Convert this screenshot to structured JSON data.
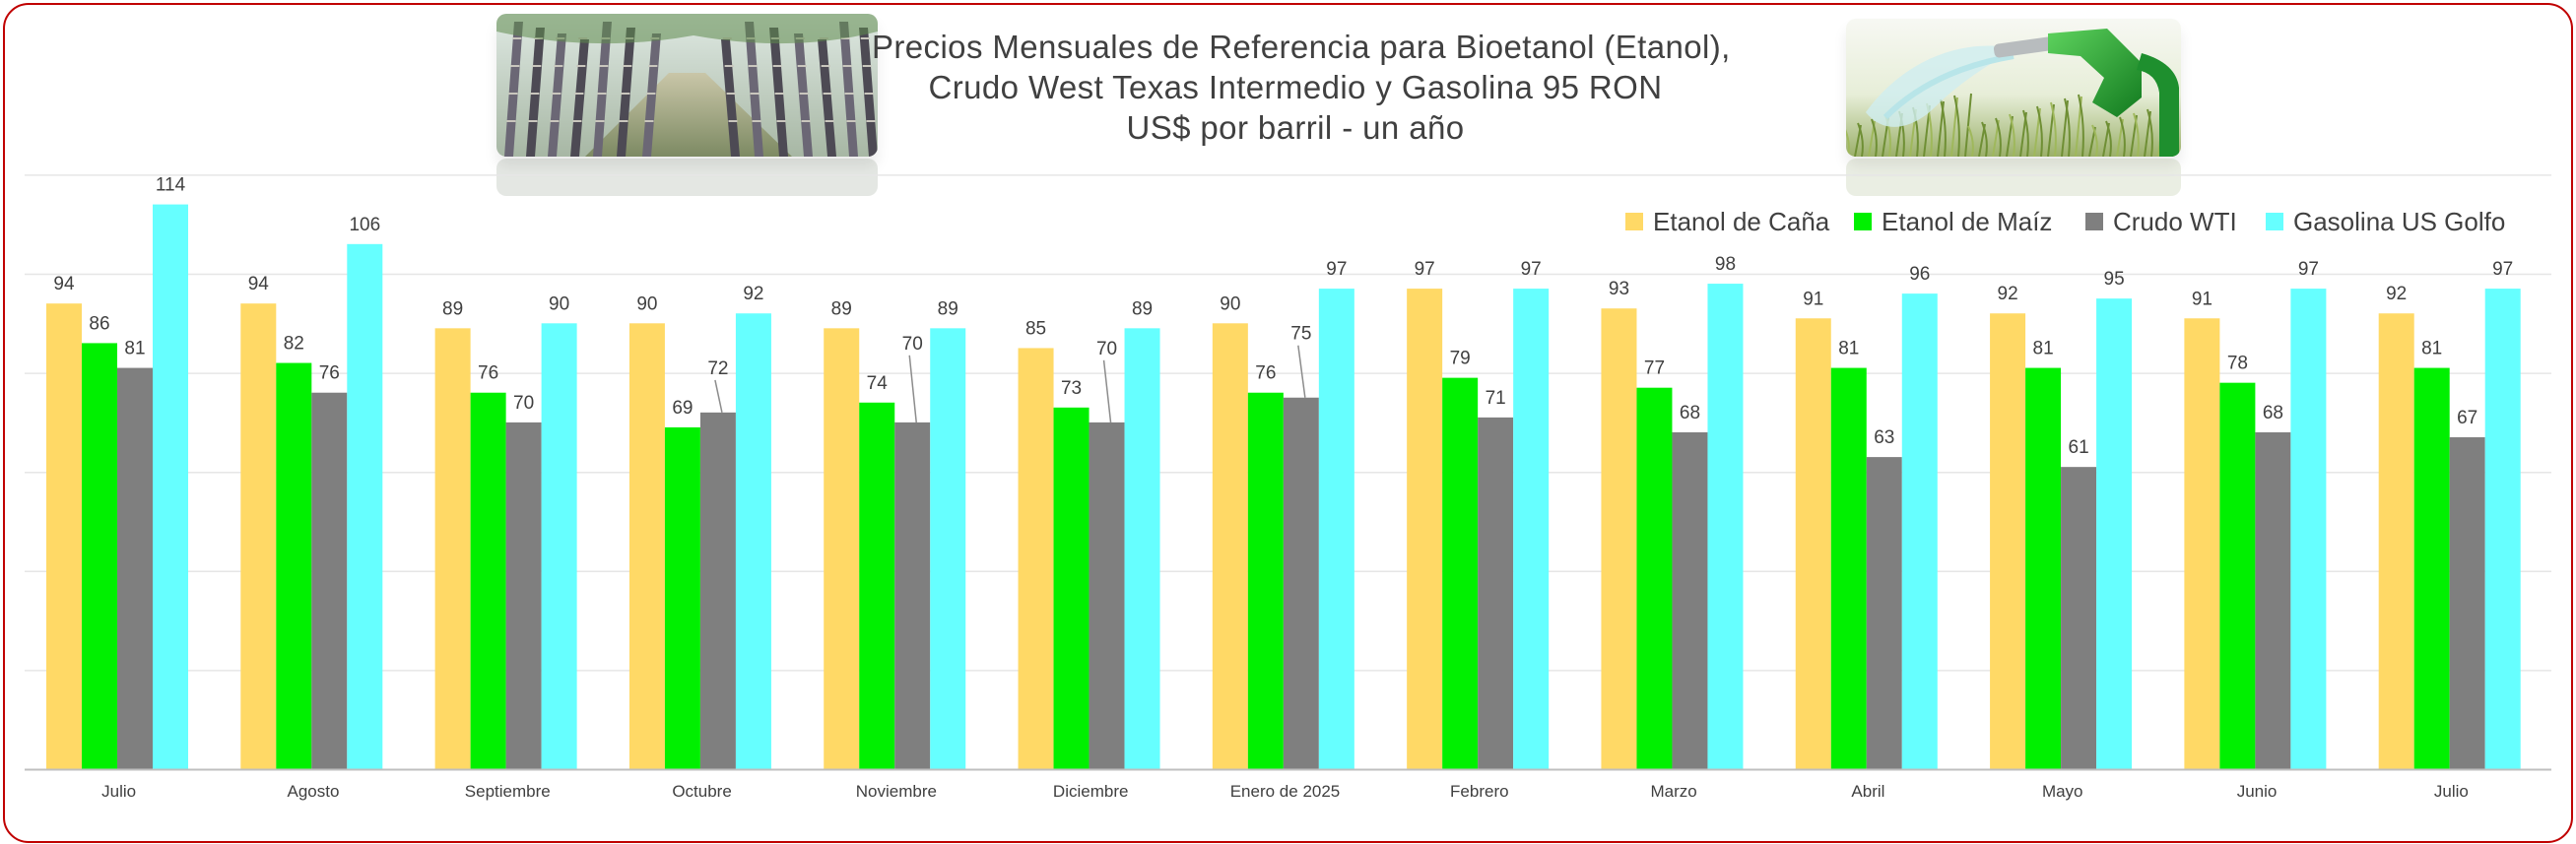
{
  "title_lines": [
    "Precios Mensuales de Referencia para Bioetanol (Etanol),",
    "Crudo West Texas Intermedio y Gasolina 95 RON",
    "US$ por barril - un año"
  ],
  "photos": {
    "left": "sugarcane-field-photo",
    "right": "fuel-pump-nozzle-photo"
  },
  "chart_data": {
    "type": "bar",
    "title": "Precios Mensuales de Referencia para Bioetanol (Etanol), Crudo West Texas Intermedio y Gasolina 95 RON US$ por barril - un año",
    "categories": [
      "Julio",
      "Agosto",
      "Septiembre",
      "Octubre",
      "Noviembre",
      "Diciembre",
      "Enero de 2025",
      "Febrero",
      "Marzo",
      "Abril",
      "Mayo",
      "Junio",
      "Julio"
    ],
    "series": [
      {
        "name": "Etanol de Caña",
        "color": "#ffd966",
        "values": [
          94,
          94,
          89,
          90,
          89,
          85,
          90,
          97,
          93,
          91,
          92,
          91,
          92
        ]
      },
      {
        "name": "Etanol de Maíz",
        "color": "#00f000",
        "values": [
          86,
          82,
          76,
          69,
          74,
          73,
          76,
          79,
          77,
          81,
          81,
          78,
          81
        ]
      },
      {
        "name": "Crudo WTI",
        "color": "#7f7f7f",
        "values": [
          81,
          76,
          70,
          72,
          70,
          70,
          75,
          71,
          68,
          63,
          61,
          68,
          67
        ]
      },
      {
        "name": "Gasolina US Golfo",
        "color": "#66ffff",
        "values": [
          114,
          106,
          90,
          92,
          89,
          89,
          97,
          97,
          98,
          96,
          95,
          97,
          97
        ]
      }
    ],
    "data_labels": true,
    "ylim": [
      0,
      120
    ],
    "grid": true,
    "y_axis_labels": false,
    "legend_position": "top-right",
    "xlabel": "",
    "ylabel": ""
  }
}
